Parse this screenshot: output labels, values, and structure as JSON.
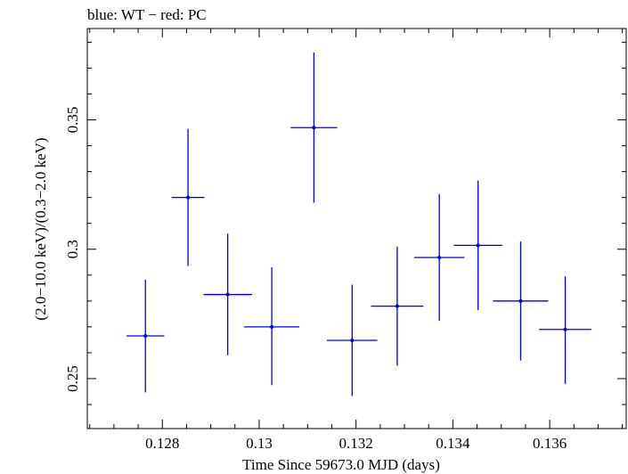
{
  "chart_data": {
    "type": "scatter",
    "title": "blue: WT − red: PC",
    "xlabel": "Time Since 59673.0 MJD (days)",
    "ylabel": "(2.0−10.0 keV)/(0.3−2.0 keV)",
    "xlim": [
      0.12645,
      0.13758
    ],
    "ylim": [
      0.2307,
      0.3853
    ],
    "x_ticks": [
      {
        "value": 0.128,
        "label": "0.128"
      },
      {
        "value": 0.13,
        "label": "0.13"
      },
      {
        "value": 0.132,
        "label": "0.132"
      },
      {
        "value": 0.134,
        "label": "0.134"
      },
      {
        "value": 0.136,
        "label": "0.136"
      }
    ],
    "y_ticks": [
      {
        "value": 0.25,
        "label": "0.25"
      },
      {
        "value": 0.3,
        "label": "0.3"
      },
      {
        "value": 0.35,
        "label": "0.35"
      }
    ],
    "x_minor_step": 0.0005,
    "y_minor_step": 0.01,
    "grid": false,
    "series": [
      {
        "color": "#0000e6",
        "points": [
          {
            "x": 0.12765,
            "xerr": 0.00039,
            "y": 0.2665,
            "yerr_low": 0.0218,
            "yerr_high": 0.0217
          },
          {
            "x": 0.12853,
            "xerr": 0.00034,
            "y": 0.32,
            "yerr_low": 0.0265,
            "yerr_high": 0.0265
          },
          {
            "x": 0.12935,
            "xerr": 0.0005,
            "y": 0.2825,
            "yerr_low": 0.0235,
            "yerr_high": 0.0235
          },
          {
            "x": 0.13026,
            "xerr": 0.00057,
            "y": 0.27,
            "yerr_low": 0.0225,
            "yerr_high": 0.023
          },
          {
            "x": 0.13113,
            "xerr": 0.00048,
            "y": 0.347,
            "yerr_low": 0.029,
            "yerr_high": 0.029
          },
          {
            "x": 0.13192,
            "xerr": 0.00052,
            "y": 0.2648,
            "yerr_low": 0.0215,
            "yerr_high": 0.0215
          },
          {
            "x": 0.13285,
            "xerr": 0.00054,
            "y": 0.278,
            "yerr_low": 0.023,
            "yerr_high": 0.023
          },
          {
            "x": 0.13372,
            "xerr": 0.00052,
            "y": 0.2968,
            "yerr_low": 0.0245,
            "yerr_high": 0.0245
          },
          {
            "x": 0.13452,
            "xerr": 0.0005,
            "y": 0.3015,
            "yerr_low": 0.025,
            "yerr_high": 0.025
          },
          {
            "x": 0.1354,
            "xerr": 0.00057,
            "y": 0.28,
            "yerr_low": 0.023,
            "yerr_high": 0.023
          },
          {
            "x": 0.13632,
            "xerr": 0.00054,
            "y": 0.269,
            "yerr_low": 0.021,
            "yerr_high": 0.0205
          }
        ]
      }
    ]
  }
}
